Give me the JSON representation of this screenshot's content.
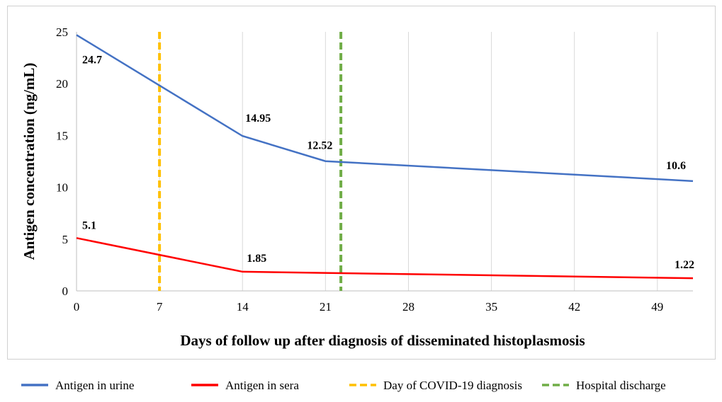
{
  "chart_data": {
    "type": "line",
    "title": "",
    "xlabel": "Days of follow up after diagnosis of disseminated histoplasmosis",
    "ylabel": "Antigen concentration (ng/mL)",
    "xlim": [
      0,
      52
    ],
    "ylim": [
      0,
      25
    ],
    "xticks": [
      0,
      7,
      14,
      21,
      28,
      35,
      42,
      49
    ],
    "yticks": [
      0,
      5,
      10,
      15,
      20,
      25
    ],
    "grid": "vertical",
    "legend_position": "bottom",
    "series": [
      {
        "name": "Antigen in urine",
        "color": "#4472C4",
        "x": [
          0,
          14,
          21,
          52
        ],
        "y": [
          24.7,
          14.95,
          12.52,
          10.6
        ],
        "labels": [
          "24.7",
          "14.95",
          "12.52",
          "10.6"
        ]
      },
      {
        "name": "Antigen in sera",
        "color": "#FF0000",
        "x": [
          0,
          14,
          52
        ],
        "y": [
          5.1,
          1.85,
          1.22
        ],
        "labels": [
          "5.1",
          "1.85",
          "1.22"
        ]
      }
    ],
    "vlines": [
      {
        "name": "Day of COVID-19 diagnosis",
        "x": 7,
        "color": "#FFC000"
      },
      {
        "name": "Hospital discharge",
        "x": 22.3,
        "color": "#70AD47"
      }
    ]
  }
}
